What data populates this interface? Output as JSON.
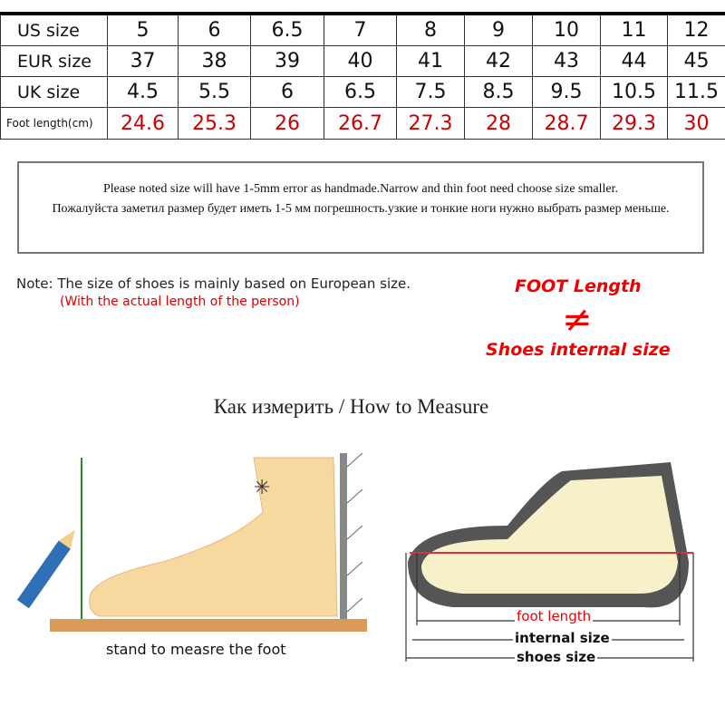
{
  "size_table": {
    "rows": [
      {
        "label": "US size",
        "values": [
          "5",
          "6",
          "6.5",
          "7",
          "8",
          "9",
          "10",
          "11",
          "12"
        ]
      },
      {
        "label": "EUR size",
        "values": [
          "37",
          "38",
          "39",
          "40",
          "41",
          "42",
          "43",
          "44",
          "45"
        ]
      },
      {
        "label": "UK size",
        "values": [
          "4.5",
          "5.5",
          "6",
          "6.5",
          "7.5",
          "8.5",
          "9.5",
          "10.5",
          "11.5"
        ]
      },
      {
        "label": "Foot length(cm)",
        "values": [
          "24.6",
          "25.3",
          "26",
          "26.7",
          "27.3",
          "28",
          "28.7",
          "29.3",
          "30"
        ]
      }
    ],
    "highlight_color": "#cc0000"
  },
  "notice": {
    "line_en": "Please noted size will have 1-5mm error as handmade.Narrow and thin foot need choose size smaller.",
    "line_ru": "Пожалуйста заметил размер будет иметь 1-5 мм погрешность.узкие и тонкие ноги нужно выбрать размер меньше."
  },
  "note": {
    "text": "Note: The size of shoes is mainly based on European size.",
    "sub": "(With the actual length of the person)"
  },
  "comparison": {
    "top": "FOOT Length",
    "symbol": "≠",
    "bottom": "Shoes internal size",
    "color": "#ee0000"
  },
  "measure": {
    "title": "Как измерить / How to Measure",
    "left_caption": "stand to measre the foot",
    "labels": {
      "foot_length": "foot length",
      "internal_size": "internal size",
      "shoes_size": "shoes size"
    }
  }
}
